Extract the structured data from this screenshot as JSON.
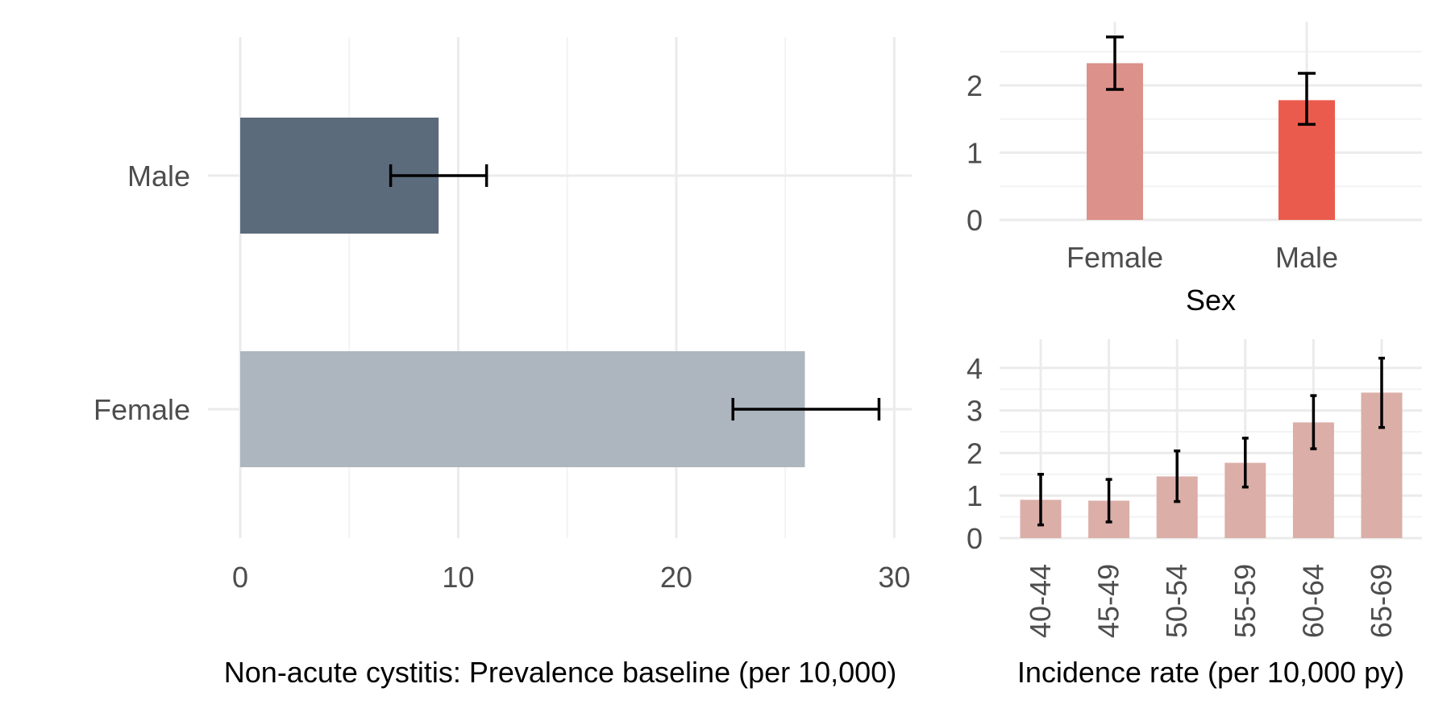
{
  "chart_data": [
    {
      "id": "prevalence",
      "type": "bar",
      "orientation": "horizontal",
      "title": "",
      "xlabel": "Non-acute cystitis: Prevalence baseline (per 10,000)",
      "ylabel": "",
      "categories": [
        "Male",
        "Female"
      ],
      "values": [
        9.1,
        25.9
      ],
      "error_low": [
        6.9,
        22.6
      ],
      "error_high": [
        11.3,
        29.3
      ],
      "colors": [
        "#5c6b7b",
        "#adb5be"
      ],
      "xlim": [
        0,
        30.8
      ],
      "xticks": [
        "0",
        "10",
        "20",
        "30"
      ],
      "grid": true
    },
    {
      "id": "sex-incidence",
      "type": "bar",
      "title": "",
      "xlabel": "Sex",
      "ylabel": "",
      "categories": [
        "Female",
        "Male"
      ],
      "values": [
        2.33,
        1.78
      ],
      "error_low": [
        1.94,
        1.42
      ],
      "error_high": [
        2.72,
        2.18
      ],
      "colors": [
        "#dc918a",
        "#eb5b4d"
      ],
      "ylim": [
        0,
        2.85
      ],
      "yticks": [
        "0",
        "1",
        "2"
      ],
      "grid": true
    },
    {
      "id": "age-incidence",
      "type": "bar",
      "title": "",
      "xlabel": "Incidence rate (per 10,000 py)",
      "ylabel": "",
      "categories": [
        "40-44",
        "45-49",
        "50-54",
        "55-59",
        "60-64",
        "65-69"
      ],
      "values": [
        0.9,
        0.88,
        1.45,
        1.77,
        2.72,
        3.42
      ],
      "error_low": [
        0.31,
        0.38,
        0.86,
        1.2,
        2.1,
        2.6
      ],
      "error_high": [
        1.5,
        1.38,
        2.05,
        2.35,
        3.35,
        4.23
      ],
      "colors": [
        "#dbaea8"
      ],
      "ylim": [
        0,
        4.45
      ],
      "yticks": [
        "0",
        "1",
        "2",
        "3",
        "4"
      ],
      "grid": true
    }
  ]
}
